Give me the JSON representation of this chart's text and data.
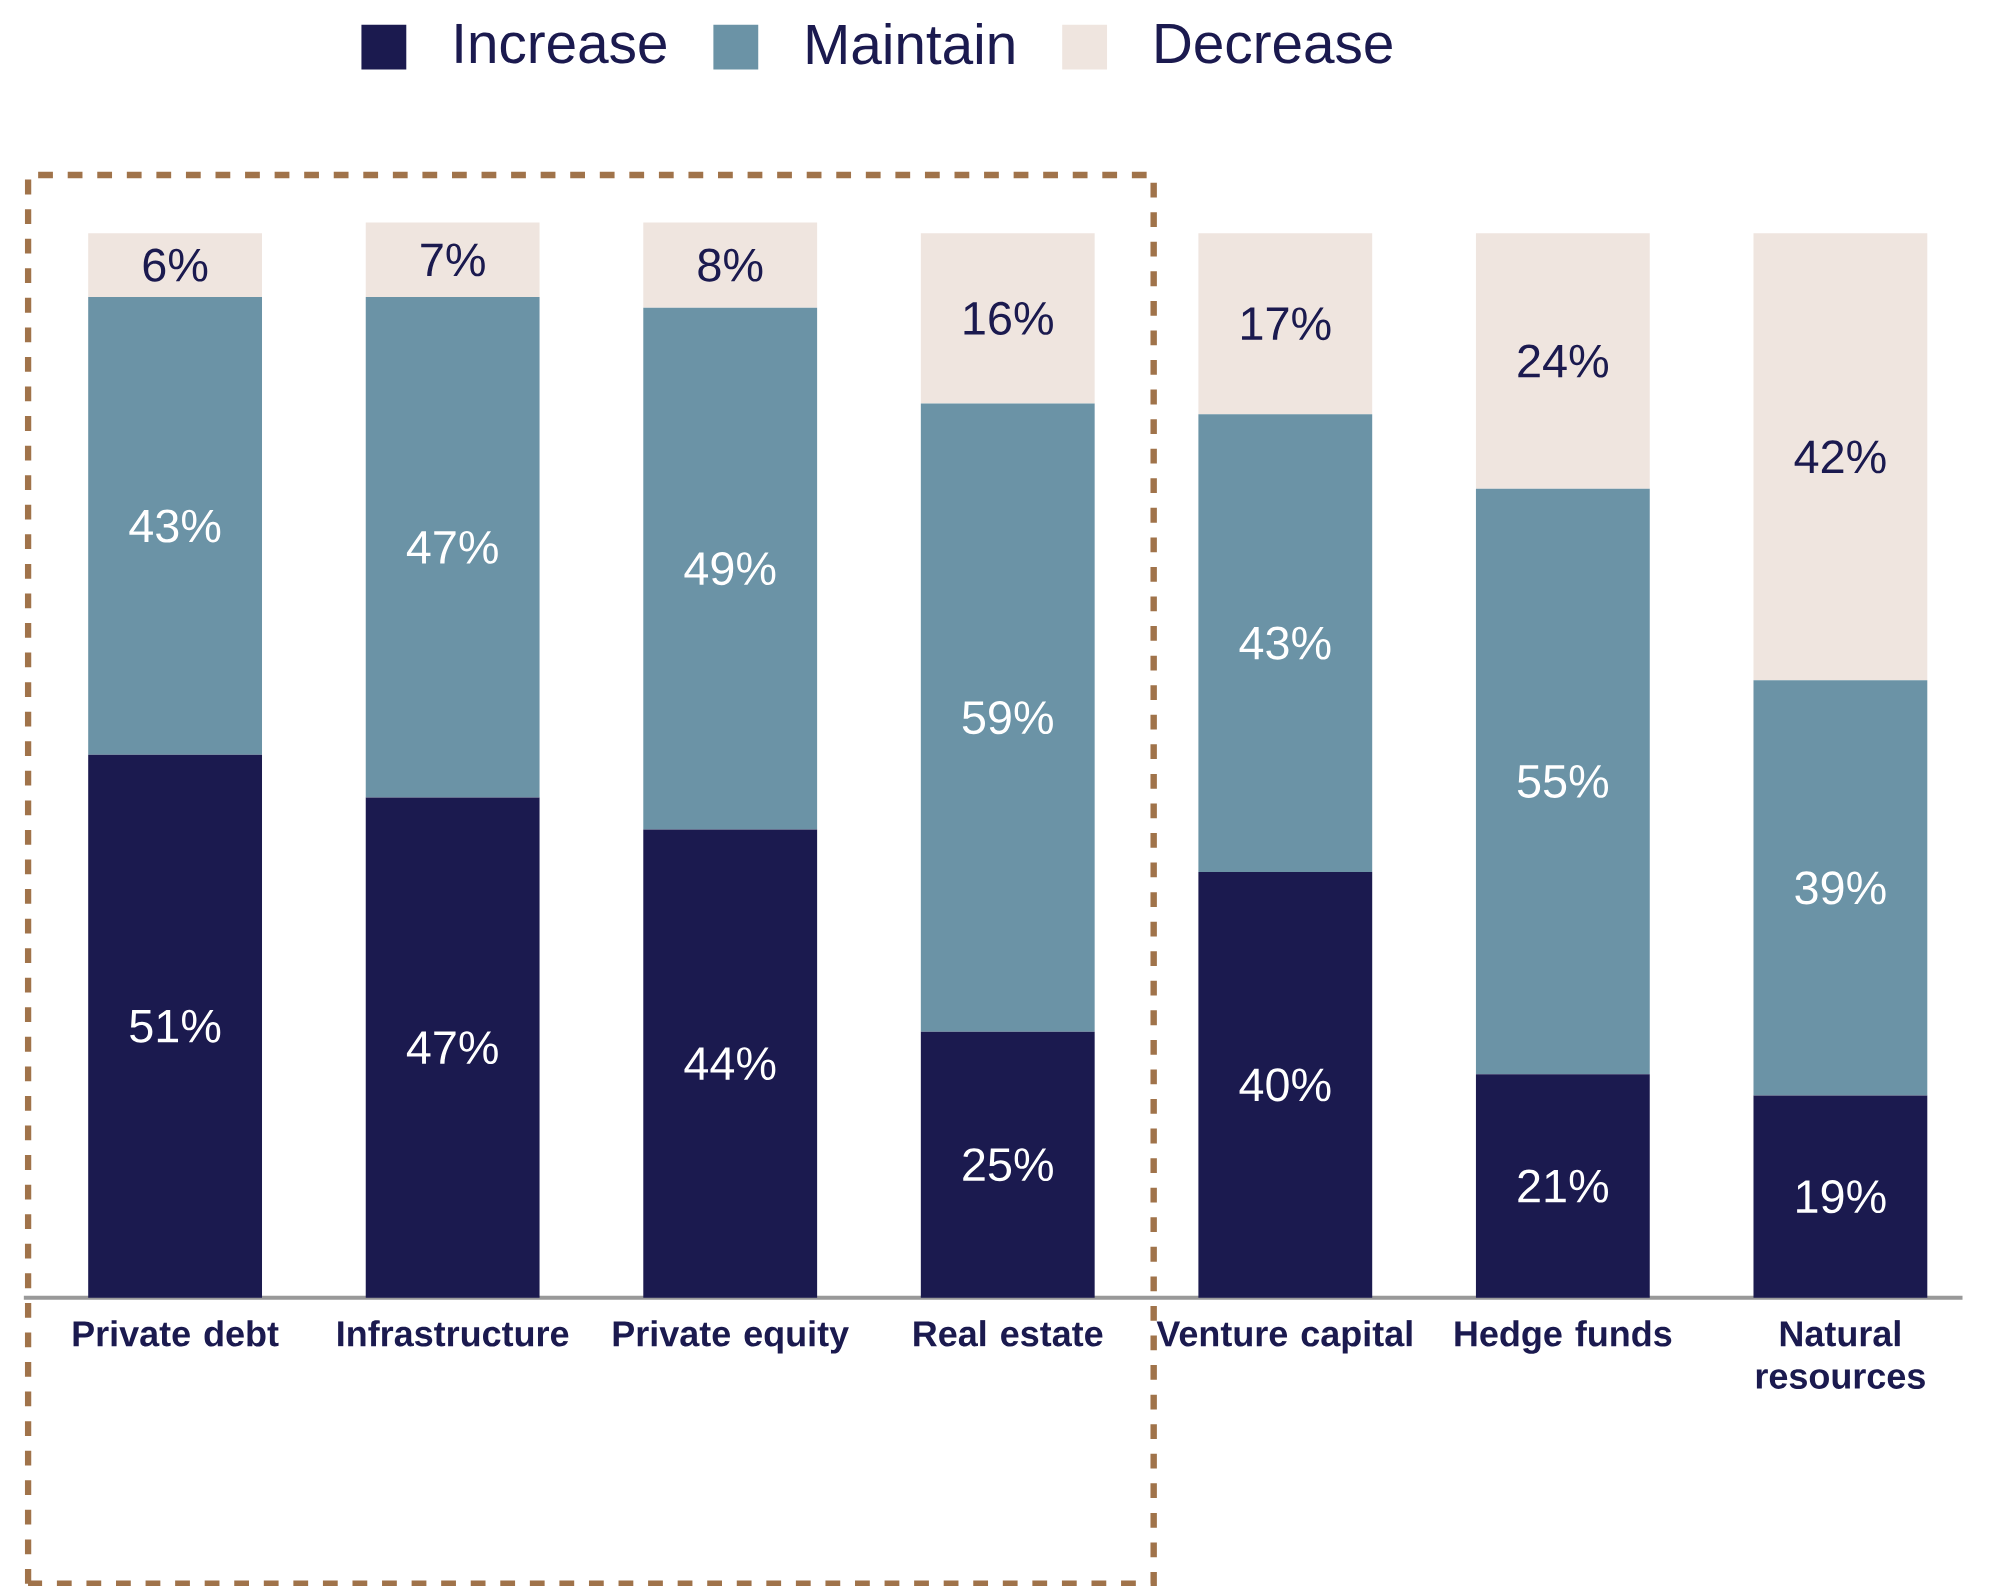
{
  "chart_data": {
    "type": "bar",
    "stacked": true,
    "legend": "top",
    "categories": [
      "Private debt",
      "Infrastructure",
      "Private equity",
      "Real estate",
      "Venture capital",
      "Hedge funds",
      "Natural resources"
    ],
    "series": [
      {
        "name": "Increase",
        "color": "#1b1a4f",
        "values": [
          51,
          47,
          44,
          25,
          40,
          21,
          19
        ],
        "value_labels": [
          "51%",
          "47%",
          "44%",
          "25%",
          "40%",
          "21%",
          "19%"
        ]
      },
      {
        "name": "Maintain",
        "color": "#6b93a6",
        "values": [
          43,
          47,
          49,
          59,
          43,
          55,
          39
        ],
        "value_labels": [
          "43%",
          "47%",
          "49%",
          "59%",
          "43%",
          "55%",
          "39%"
        ]
      },
      {
        "name": "Decrease",
        "color": "#efe5df",
        "values": [
          6,
          7,
          8,
          16,
          17,
          24,
          42
        ],
        "value_labels": [
          "6%",
          "7%",
          "8%",
          "16%",
          "17%",
          "24%",
          "42%"
        ]
      }
    ]
  }
}
